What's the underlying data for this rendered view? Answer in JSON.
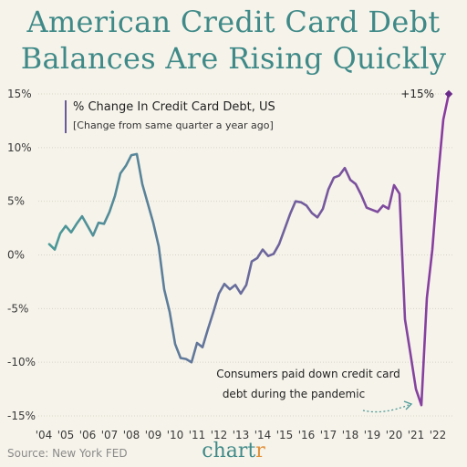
{
  "header": {
    "title_line1": "American Credit Card Debt",
    "title_line2": "Balances Are Rising Quickly"
  },
  "footer": {
    "source": "Source: New York FED",
    "brand_main": "chart",
    "brand_accent": "r"
  },
  "colors": {
    "title": "#3f8a88",
    "line_start": "#4a9a98",
    "line_end": "#8a3aa0",
    "marker": "#6a2a8a",
    "brand_accent": "#e0913a",
    "annotation_arrow": "#4a9a98"
  },
  "chart_data": {
    "type": "line",
    "legend_title": "% Change In Credit Card Debt, US",
    "legend_subtitle": "[Change from same quarter a year ago]",
    "y_ticks": [
      "15%",
      "10%",
      "5%",
      "0%",
      "-5%",
      "-10%",
      "-15%"
    ],
    "y_tick_values": [
      15,
      10,
      5,
      0,
      -5,
      -10,
      -15
    ],
    "x_ticks": [
      "'04",
      "'05",
      "'06",
      "'07",
      "'08",
      "'09",
      "'10",
      "'11",
      "'12",
      "'13",
      "'14",
      "'15",
      "'16",
      "'17",
      "'18",
      "'19",
      "'20",
      "'21",
      "'22"
    ],
    "ylim": [
      -15,
      15
    ],
    "xlim": [
      2004,
      2022
    ],
    "series": [
      {
        "x": [
          2004.25,
          2004.5,
          2004.75,
          2005.0,
          2005.25,
          2005.5,
          2005.75,
          2006.0,
          2006.25,
          2006.5,
          2006.75,
          2007.0,
          2007.25,
          2007.5,
          2007.75,
          2008.0,
          2008.25,
          2008.5,
          2008.75,
          2009.0,
          2009.25,
          2009.5,
          2009.75,
          2010.0,
          2010.25,
          2010.5,
          2010.75,
          2011.0,
          2011.25,
          2011.5,
          2011.75,
          2012.0,
          2012.25,
          2012.5,
          2012.75,
          2013.0,
          2013.25,
          2013.5,
          2013.75,
          2014.0,
          2014.25,
          2014.5,
          2014.75,
          2015.0,
          2015.25,
          2015.5,
          2015.75,
          2016.0,
          2016.25,
          2016.5,
          2016.75,
          2017.0,
          2017.25,
          2017.5,
          2017.75,
          2018.0,
          2018.25,
          2018.5,
          2018.75,
          2019.0,
          2019.25,
          2019.5,
          2019.75,
          2020.0,
          2020.25,
          2020.5,
          2020.75,
          2021.0,
          2021.25,
          2021.5,
          2021.75,
          2022.0,
          2022.25,
          2022.5
        ],
        "values": [
          1.0,
          0.5,
          2.0,
          2.7,
          2.1,
          2.9,
          3.6,
          2.7,
          1.8,
          3.0,
          2.9,
          4.0,
          5.5,
          7.6,
          8.3,
          9.3,
          9.4,
          6.6,
          4.8,
          3.0,
          0.8,
          -3.2,
          -5.3,
          -8.3,
          -9.6,
          -9.7,
          -10.0,
          -8.2,
          -8.6,
          -6.9,
          -5.3,
          -3.6,
          -2.7,
          -3.2,
          -2.8,
          -3.6,
          -2.8,
          -0.6,
          -0.3,
          0.5,
          -0.1,
          0.1,
          1.0,
          2.4,
          3.8,
          5.0,
          4.9,
          4.6,
          3.9,
          3.5,
          4.3,
          6.1,
          7.2,
          7.4,
          8.1,
          7.0,
          6.6,
          5.6,
          4.4,
          4.2,
          4.0,
          4.6,
          4.3,
          6.5,
          5.7,
          -6.0,
          -9.2,
          -12.5,
          -14.0,
          -4.0,
          0.5,
          7.0,
          12.6,
          15.0
        ]
      }
    ],
    "end_label": "+15%",
    "annotation_line1": "Consumers paid down credit card",
    "annotation_line2": "debt during the pandemic"
  }
}
